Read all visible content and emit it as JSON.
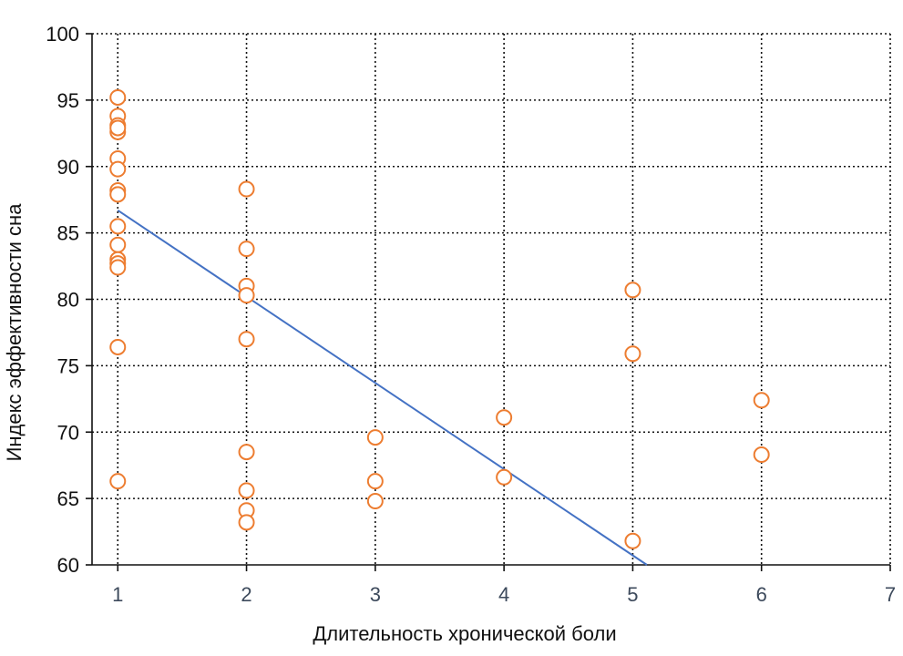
{
  "chart_data": {
    "type": "scatter",
    "xlabel": "Длительность хронической боли",
    "ylabel": "Индекс эффективности сна",
    "xlim": [
      0.8,
      7
    ],
    "ylim": [
      60,
      100
    ],
    "x_ticks": [
      1,
      2,
      3,
      4,
      5,
      6,
      7
    ],
    "y_ticks": [
      60,
      65,
      70,
      75,
      80,
      85,
      90,
      95,
      100
    ],
    "grid": true,
    "series": [
      {
        "color": "#ed7d31",
        "points": [
          {
            "x": 1,
            "y": 95.2
          },
          {
            "x": 1,
            "y": 93.8
          },
          {
            "x": 1,
            "y": 93.1
          },
          {
            "x": 1,
            "y": 92.6
          },
          {
            "x": 1,
            "y": 92.9
          },
          {
            "x": 1,
            "y": 90.6
          },
          {
            "x": 1,
            "y": 89.8
          },
          {
            "x": 1,
            "y": 88.2
          },
          {
            "x": 1,
            "y": 87.9
          },
          {
            "x": 1,
            "y": 85.5
          },
          {
            "x": 1,
            "y": 84.1
          },
          {
            "x": 1,
            "y": 83.0
          },
          {
            "x": 1,
            "y": 82.7
          },
          {
            "x": 1,
            "y": 82.4
          },
          {
            "x": 1,
            "y": 76.4
          },
          {
            "x": 1,
            "y": 66.3
          },
          {
            "x": 2,
            "y": 88.3
          },
          {
            "x": 2,
            "y": 83.8
          },
          {
            "x": 2,
            "y": 81.0
          },
          {
            "x": 2,
            "y": 80.3
          },
          {
            "x": 2,
            "y": 77.0
          },
          {
            "x": 2,
            "y": 68.5
          },
          {
            "x": 2,
            "y": 65.6
          },
          {
            "x": 2,
            "y": 64.1
          },
          {
            "x": 2,
            "y": 63.2
          },
          {
            "x": 3,
            "y": 69.6
          },
          {
            "x": 3,
            "y": 66.3
          },
          {
            "x": 3,
            "y": 64.8
          },
          {
            "x": 4,
            "y": 71.1
          },
          {
            "x": 4,
            "y": 66.6
          },
          {
            "x": 5,
            "y": 80.7
          },
          {
            "x": 5,
            "y": 75.9
          },
          {
            "x": 5,
            "y": 61.8
          },
          {
            "x": 6,
            "y": 72.4
          },
          {
            "x": 6,
            "y": 68.3
          }
        ]
      }
    ],
    "trendline": {
      "color": "#4472c4",
      "x": [
        1,
        5.11
      ],
      "y": [
        86.7,
        60
      ]
    }
  }
}
